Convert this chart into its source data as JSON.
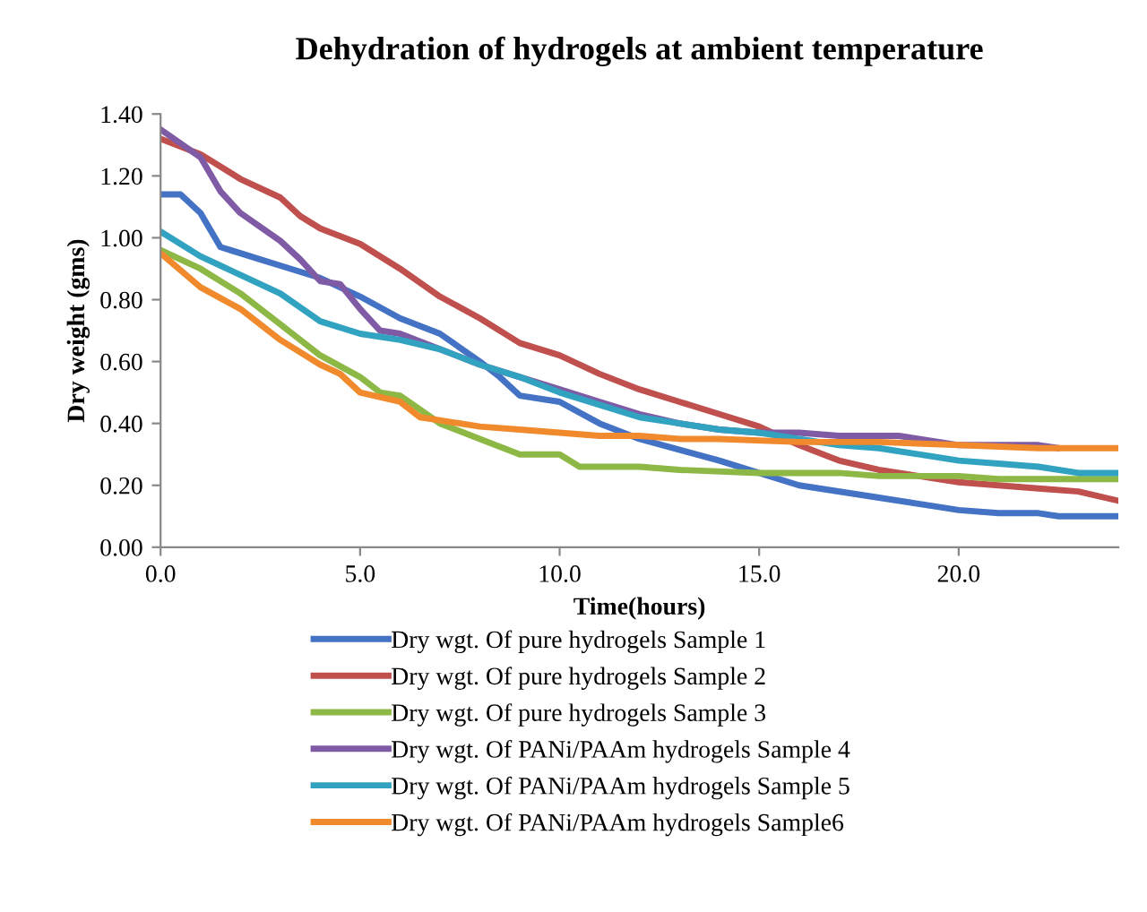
{
  "chart_data": {
    "type": "line",
    "title": "Dehydration of hydrogels at ambient temperature",
    "xlabel": "Time(hours)",
    "ylabel": "Dry weight (gms)",
    "xlim": [
      0,
      24
    ],
    "xticks": [
      {
        "value": 0,
        "label": "0.0"
      },
      {
        "value": 5,
        "label": "5.0"
      },
      {
        "value": 10,
        "label": "10.0"
      },
      {
        "value": 15,
        "label": "15.0"
      },
      {
        "value": 20,
        "label": "20.0"
      }
    ],
    "ylim": [
      0,
      1.4
    ],
    "yticks": [
      {
        "value": 0,
        "label": "0.00"
      },
      {
        "value": 0.2,
        "label": "0.20"
      },
      {
        "value": 0.4,
        "label": "0.40"
      },
      {
        "value": 0.6,
        "label": "0.60"
      },
      {
        "value": 0.8,
        "label": "0.80"
      },
      {
        "value": 1.0,
        "label": "1.00"
      },
      {
        "value": 1.2,
        "label": "1.20"
      },
      {
        "value": 1.4,
        "label": "1.40"
      }
    ],
    "grid": false,
    "legend": "bottom",
    "marker": "none",
    "line_style": "solid",
    "series": [
      {
        "name": "Dry wgt. Of pure hydrogels Sample 1",
        "color": "#4472c4",
        "x": [
          0,
          0.5,
          1,
          1.5,
          2,
          2.5,
          3,
          4,
          5,
          6,
          7,
          8,
          8.5,
          9,
          10,
          11,
          12,
          14,
          16,
          18,
          19.5,
          20,
          21,
          22,
          22.5,
          24
        ],
        "values": [
          1.14,
          1.14,
          1.08,
          0.97,
          0.95,
          0.93,
          0.91,
          0.87,
          0.81,
          0.74,
          0.69,
          0.6,
          0.55,
          0.49,
          0.47,
          0.4,
          0.35,
          0.28,
          0.2,
          0.16,
          0.13,
          0.12,
          0.11,
          0.11,
          0.1,
          0.1
        ]
      },
      {
        "name": "Dry wgt. Of pure hydrogels Sample 2",
        "color": "#c0504d",
        "x": [
          0,
          1,
          2,
          3,
          3.5,
          4,
          5,
          6,
          7,
          8,
          9,
          10,
          11,
          12,
          13,
          14,
          15,
          16,
          17,
          18,
          19,
          20,
          21,
          22,
          23,
          24
        ],
        "values": [
          1.32,
          1.27,
          1.19,
          1.13,
          1.07,
          1.03,
          0.98,
          0.9,
          0.81,
          0.74,
          0.66,
          0.62,
          0.56,
          0.51,
          0.47,
          0.43,
          0.39,
          0.33,
          0.28,
          0.25,
          0.23,
          0.21,
          0.2,
          0.19,
          0.18,
          0.15
        ]
      },
      {
        "name": "Dry wgt. Of pure hydrogels Sample 3",
        "color": "#8db845",
        "x": [
          0,
          1,
          2,
          3,
          4,
          5,
          5.5,
          6,
          7,
          8,
          9,
          10,
          10.5,
          12,
          13,
          15,
          17,
          18,
          19,
          20,
          21,
          24
        ],
        "values": [
          0.96,
          0.9,
          0.82,
          0.72,
          0.62,
          0.55,
          0.5,
          0.49,
          0.4,
          0.35,
          0.3,
          0.3,
          0.26,
          0.26,
          0.25,
          0.24,
          0.24,
          0.23,
          0.23,
          0.23,
          0.22,
          0.22
        ]
      },
      {
        "name": "Dry wgt. Of PANi/PAAm hydrogels Sample 4",
        "color": "#7f5ba6",
        "x": [
          0,
          1,
          1.5,
          2,
          3,
          3.5,
          4,
          4.5,
          5,
          5.5,
          6,
          7,
          8,
          9,
          10,
          11,
          12,
          13,
          14,
          15,
          16,
          17,
          18.5,
          19,
          20,
          22,
          22.5
        ],
        "values": [
          1.35,
          1.26,
          1.15,
          1.08,
          0.99,
          0.93,
          0.86,
          0.85,
          0.77,
          0.7,
          0.69,
          0.64,
          0.59,
          0.55,
          0.51,
          0.47,
          0.43,
          0.4,
          0.38,
          0.37,
          0.37,
          0.36,
          0.36,
          0.35,
          0.33,
          0.33,
          0.32
        ]
      },
      {
        "name": "Dry wgt. Of PANi/PAAm hydrogels Sample 5",
        "color": "#31a2c0",
        "x": [
          0,
          1,
          2,
          3,
          4,
          5,
          6,
          7,
          8,
          9,
          10,
          11,
          12,
          13,
          14,
          15,
          16,
          17,
          18,
          19,
          20,
          21,
          22,
          23,
          24
        ],
        "values": [
          1.02,
          0.94,
          0.88,
          0.82,
          0.73,
          0.69,
          0.67,
          0.64,
          0.59,
          0.55,
          0.5,
          0.46,
          0.42,
          0.4,
          0.38,
          0.37,
          0.35,
          0.33,
          0.32,
          0.3,
          0.28,
          0.27,
          0.26,
          0.24,
          0.24
        ]
      },
      {
        "name": "Dry wgt. Of PANi/PAAm hydrogels Sample6",
        "color": "#f08a2c",
        "x": [
          0,
          1,
          2,
          3,
          4,
          4.5,
          5,
          6,
          6.5,
          7,
          8,
          9,
          10,
          11,
          12,
          13,
          14,
          16,
          18,
          20,
          22,
          24
        ],
        "values": [
          0.95,
          0.84,
          0.77,
          0.67,
          0.59,
          0.56,
          0.5,
          0.47,
          0.42,
          0.41,
          0.39,
          0.38,
          0.37,
          0.36,
          0.36,
          0.35,
          0.35,
          0.34,
          0.34,
          0.33,
          0.32,
          0.32
        ]
      }
    ]
  }
}
